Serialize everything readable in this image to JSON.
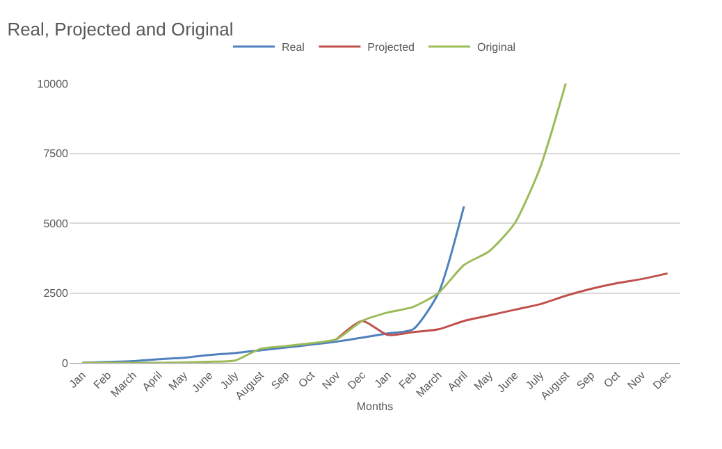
{
  "chart_data": {
    "type": "line",
    "title": "Real, Projected and Original",
    "xlabel": "Months",
    "categories": [
      "Jan",
      "Feb",
      "March",
      "April",
      "May",
      "June",
      "July",
      "August",
      "Sep",
      "Oct",
      "Nov",
      "Dec",
      "Jan",
      "Feb",
      "March",
      "April",
      "May",
      "June",
      "July",
      "August",
      "Sep",
      "Oct",
      "Nov",
      "Dec"
    ],
    "series": [
      {
        "name": "Real",
        "color": "#4f81bd",
        "values": [
          0,
          30,
          60,
          130,
          180,
          280,
          350,
          450,
          550,
          650,
          760,
          900,
          1050,
          1200,
          2500,
          5600,
          null,
          null,
          null,
          null,
          null,
          null,
          null,
          null
        ]
      },
      {
        "name": "Projected",
        "color": "#c0504d",
        "values": [
          null,
          null,
          null,
          null,
          null,
          null,
          null,
          null,
          null,
          null,
          850,
          1500,
          1000,
          1100,
          1200,
          1500,
          1700,
          1900,
          2100,
          2400,
          2650,
          2850,
          3000,
          3200
        ]
      },
      {
        "name": "Original",
        "color": "#9bbb59",
        "values": [
          0,
          0,
          0,
          0,
          10,
          40,
          80,
          500,
          600,
          700,
          850,
          1500,
          1800,
          2000,
          2500,
          3500,
          4000,
          5000,
          7000,
          10000,
          null,
          null,
          null,
          null
        ]
      }
    ],
    "ylim": [
      0,
      10000
    ],
    "yticks": [
      0,
      2500,
      5000,
      7500,
      10000
    ],
    "grid": "y",
    "legend": "top",
    "line_style": "solid",
    "marker": "none"
  }
}
